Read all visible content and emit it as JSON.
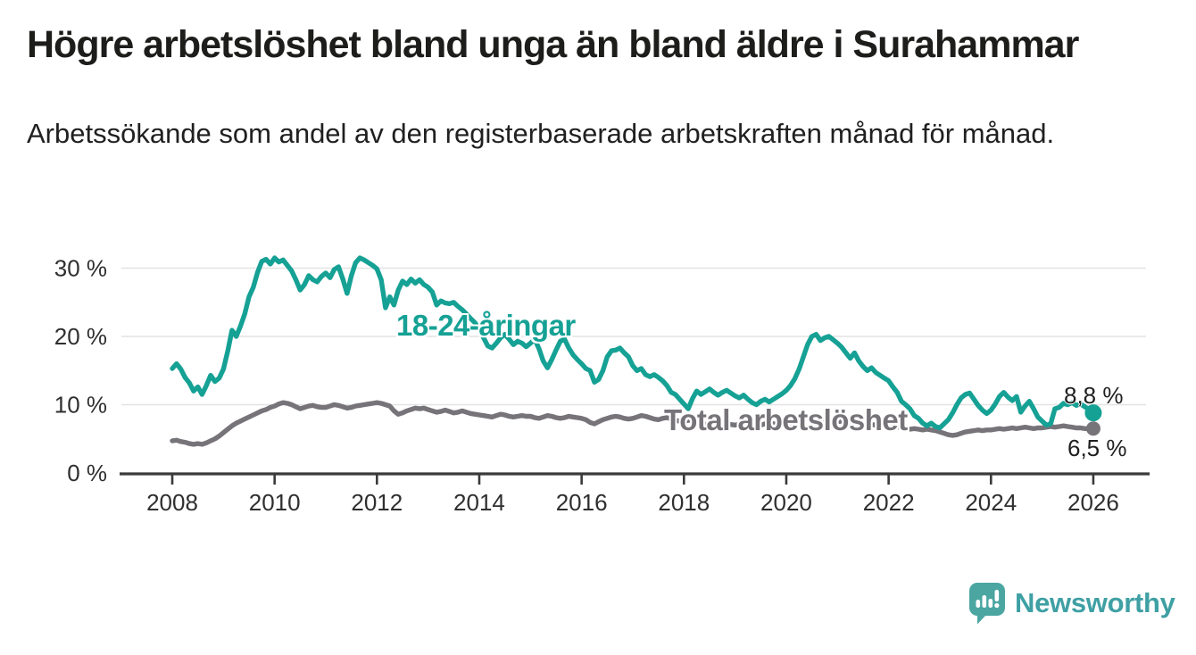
{
  "header": {
    "title": "Högre arbetslöshet bland unga än bland äldre i Surahammar",
    "subtitle": "Arbetssökande som andel av den registerbaserade arbetskraften månad för månad."
  },
  "branding": {
    "wordmark": "Newsworthy",
    "icon": "bar-chart-speech-bubble",
    "icon_color": "#4BA6A2",
    "text_color": "#3FA0A4"
  },
  "chart_data": {
    "type": "line",
    "title": "Högre arbetslöshet bland unga än bland äldre i Surahammar",
    "subtitle": "Arbetssökande som andel av den registerbaserade arbetskraften månad för månad.",
    "x_unit": "month",
    "x_start_year": 2008,
    "x_end_year": 2026,
    "xlim": [
      2007,
      2027.1
    ],
    "ylim": [
      0,
      33
    ],
    "grid": "horizontal",
    "x_ticks": [
      2008,
      2010,
      2012,
      2014,
      2016,
      2018,
      2020,
      2022,
      2024,
      2026
    ],
    "y_ticks": [
      {
        "value": 0,
        "label": "0 %"
      },
      {
        "value": 10,
        "label": "10 %"
      },
      {
        "value": 20,
        "label": "20 %"
      },
      {
        "value": 30,
        "label": "30 %"
      }
    ],
    "series": [
      {
        "name": "Total arbetslöshet",
        "color": "#767379",
        "latest_label": "6,5 %",
        "latest_value": 6.5,
        "values": [
          4.7,
          4.8,
          4.6,
          4.5,
          4.3,
          4.2,
          4.3,
          4.2,
          4.4,
          4.7,
          5.0,
          5.4,
          5.9,
          6.4,
          6.9,
          7.3,
          7.6,
          7.9,
          8.2,
          8.5,
          8.8,
          9.1,
          9.3,
          9.6,
          9.8,
          10.1,
          10.3,
          10.2,
          10.0,
          9.7,
          9.4,
          9.6,
          9.8,
          9.9,
          9.7,
          9.6,
          9.6,
          9.8,
          10.0,
          9.9,
          9.7,
          9.5,
          9.6,
          9.8,
          9.9,
          10.0,
          10.1,
          10.2,
          10.3,
          10.2,
          10.0,
          9.8,
          9.1,
          8.6,
          8.8,
          9.1,
          9.3,
          9.5,
          9.4,
          9.5,
          9.3,
          9.1,
          8.9,
          9.0,
          9.2,
          9.0,
          8.8,
          8.9,
          9.1,
          8.9,
          8.7,
          8.6,
          8.5,
          8.4,
          8.3,
          8.2,
          8.4,
          8.6,
          8.5,
          8.3,
          8.2,
          8.3,
          8.4,
          8.3,
          8.3,
          8.1,
          8.0,
          8.2,
          8.4,
          8.3,
          8.1,
          8.0,
          8.1,
          8.3,
          8.2,
          8.1,
          8.0,
          7.8,
          7.4,
          7.2,
          7.5,
          7.8,
          8.0,
          8.2,
          8.3,
          8.2,
          8.0,
          7.9,
          8.0,
          8.2,
          8.4,
          8.3,
          8.1,
          7.9,
          7.8,
          8.0,
          8.1,
          7.9,
          7.7,
          7.6,
          7.5,
          7.7,
          7.8,
          7.6,
          7.3,
          7.1,
          7.3,
          7.5,
          7.6,
          7.4,
          7.2,
          7.1,
          7.0,
          7.2,
          7.3,
          7.1,
          6.9,
          6.8,
          7.0,
          7.2,
          7.3,
          7.2,
          7.1,
          7.2,
          7.3,
          7.2,
          7.4,
          7.8,
          8.1,
          8.3,
          8.2,
          8.0,
          7.9,
          7.7,
          7.6,
          7.5,
          7.5,
          7.6,
          7.5,
          7.3,
          7.1,
          7.0,
          6.9,
          7.0,
          7.1,
          7.0,
          6.8,
          6.9,
          6.9,
          6.8,
          6.7,
          6.6,
          6.5,
          6.4,
          6.5,
          6.4,
          6.3,
          6.4,
          6.3,
          6.2,
          6.0,
          5.8,
          5.6,
          5.5,
          5.6,
          5.8,
          6.0,
          6.1,
          6.2,
          6.3,
          6.2,
          6.3,
          6.3,
          6.4,
          6.5,
          6.4,
          6.5,
          6.6,
          6.5,
          6.6,
          6.7,
          6.6,
          6.5,
          6.6,
          6.6,
          6.7,
          6.8,
          6.7,
          6.8,
          6.9,
          6.8,
          6.7,
          6.6,
          6.6,
          6.5,
          6.5,
          6.5
        ]
      },
      {
        "name": "18-24-åringar",
        "color": "#16A195",
        "latest_label": "8,8 %",
        "latest_value": 8.8,
        "values": [
          15.3,
          16.0,
          15.2,
          14.0,
          13.2,
          12.0,
          12.6,
          11.5,
          12.8,
          14.3,
          13.4,
          13.9,
          15.2,
          17.8,
          20.9,
          20.0,
          21.5,
          23.3,
          25.8,
          27.2,
          29.4,
          31.0,
          31.3,
          30.6,
          31.5,
          30.9,
          31.2,
          30.4,
          29.6,
          28.3,
          26.8,
          27.6,
          28.9,
          28.3,
          28.0,
          28.8,
          29.3,
          28.6,
          29.8,
          30.2,
          28.4,
          26.3,
          28.9,
          30.8,
          31.5,
          31.2,
          30.8,
          30.4,
          29.9,
          28.3,
          24.2,
          25.8,
          24.6,
          26.8,
          28.1,
          27.6,
          28.4,
          27.8,
          28.3,
          27.6,
          27.2,
          26.5,
          24.6,
          25.2,
          24.9,
          24.8,
          25.0,
          24.4,
          23.9,
          23.3,
          22.6,
          22.0,
          21.0,
          19.8,
          18.6,
          18.3,
          19.0,
          19.8,
          20.3,
          19.6,
          18.8,
          19.3,
          19.0,
          18.5,
          19.0,
          19.6,
          18.2,
          16.4,
          15.4,
          16.6,
          18.0,
          19.3,
          19.6,
          18.3,
          17.3,
          16.6,
          16.0,
          15.3,
          15.0,
          13.3,
          13.7,
          15.0,
          17.0,
          17.9,
          18.0,
          18.3,
          17.6,
          17.0,
          15.7,
          15.0,
          15.3,
          14.4,
          14.1,
          14.4,
          14.0,
          13.5,
          12.8,
          11.8,
          11.5,
          10.8,
          10.1,
          9.4,
          10.9,
          12.0,
          11.5,
          11.9,
          12.3,
          11.8,
          11.4,
          11.8,
          12.1,
          11.7,
          11.3,
          11.0,
          11.4,
          10.8,
          10.3,
          10.0,
          10.5,
          10.8,
          10.4,
          10.8,
          11.2,
          11.6,
          12.1,
          12.8,
          13.8,
          15.2,
          17.0,
          18.8,
          20.0,
          20.3,
          19.4,
          19.8,
          20.0,
          19.5,
          19.0,
          18.4,
          17.6,
          16.8,
          17.6,
          16.4,
          15.6,
          15.0,
          15.4,
          14.7,
          14.3,
          13.9,
          13.5,
          12.6,
          11.8,
          10.5,
          10.0,
          9.4,
          8.4,
          8.0,
          7.3,
          6.9,
          7.3,
          6.8,
          6.6,
          7.2,
          7.8,
          8.8,
          10.0,
          11.0,
          11.5,
          11.7,
          10.8,
          9.9,
          9.2,
          8.7,
          9.2,
          10.1,
          11.2,
          11.8,
          11.1,
          10.6,
          11.2,
          8.9,
          9.8,
          10.5,
          9.4,
          8.2,
          7.6,
          7.0,
          7.2,
          9.4,
          9.6,
          10.2,
          10.0,
          10.3,
          9.9,
          10.1,
          9.7,
          9.3,
          8.8
        ]
      }
    ]
  }
}
